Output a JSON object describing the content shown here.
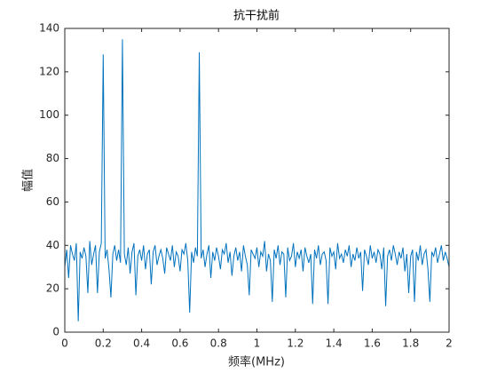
{
  "chart_data": {
    "type": "line",
    "title": "抗干扰前",
    "xlabel": "频率(MHz)",
    "ylabel": "幅值",
    "color": "#0072bd",
    "x": [
      0,
      0.01,
      0.02,
      0.03,
      0.04,
      0.05,
      0.06,
      0.07,
      0.08,
      0.09,
      0.1,
      0.11,
      0.12,
      0.13,
      0.14,
      0.15,
      0.16,
      0.17,
      0.18,
      0.19,
      0.2,
      0.21,
      0.22,
      0.23,
      0.24,
      0.25,
      0.26,
      0.27,
      0.28,
      0.29,
      0.3,
      0.31,
      0.32,
      0.33,
      0.34,
      0.35,
      0.36,
      0.37,
      0.38,
      0.39,
      0.4,
      0.41,
      0.42,
      0.43,
      0.44,
      0.45,
      0.46,
      0.47,
      0.48,
      0.49,
      0.5,
      0.51,
      0.52,
      0.53,
      0.54,
      0.55,
      0.56,
      0.57,
      0.58,
      0.59,
      0.6,
      0.61,
      0.62,
      0.63,
      0.64,
      0.65,
      0.66,
      0.67,
      0.68,
      0.69,
      0.7,
      0.71,
      0.72,
      0.73,
      0.74,
      0.75,
      0.76,
      0.77,
      0.78,
      0.79,
      0.8,
      0.81,
      0.82,
      0.83,
      0.84,
      0.85,
      0.86,
      0.87,
      0.88,
      0.89,
      0.9,
      0.91,
      0.92,
      0.93,
      0.94,
      0.95,
      0.96,
      0.97,
      0.98,
      0.99,
      1,
      1.01,
      1.02,
      1.03,
      1.04,
      1.05,
      1.06,
      1.07,
      1.08,
      1.09,
      1.1,
      1.11,
      1.12,
      1.13,
      1.14,
      1.15,
      1.16,
      1.17,
      1.18,
      1.19,
      1.2,
      1.21,
      1.22,
      1.23,
      1.24,
      1.25,
      1.26,
      1.27,
      1.28,
      1.29,
      1.3,
      1.31,
      1.32,
      1.33,
      1.34,
      1.35,
      1.36,
      1.37,
      1.38,
      1.39,
      1.4,
      1.41,
      1.42,
      1.43,
      1.44,
      1.45,
      1.46,
      1.47,
      1.48,
      1.49,
      1.5,
      1.51,
      1.52,
      1.53,
      1.54,
      1.55,
      1.56,
      1.57,
      1.58,
      1.59,
      1.6,
      1.61,
      1.62,
      1.63,
      1.64,
      1.65,
      1.66,
      1.67,
      1.68,
      1.69,
      1.7,
      1.71,
      1.72,
      1.73,
      1.74,
      1.75,
      1.76,
      1.77,
      1.78,
      1.79,
      1.8,
      1.81,
      1.82,
      1.83,
      1.84,
      1.85,
      1.86,
      1.87,
      1.88,
      1.89,
      1.9,
      1.91,
      1.92,
      1.93,
      1.94,
      1.95,
      1.96,
      1.97,
      1.98,
      1.99,
      2
    ],
    "values": [
      30,
      38,
      25,
      40,
      36,
      33,
      41,
      5,
      37,
      34,
      39,
      35,
      18,
      42,
      31,
      36,
      40,
      18,
      37,
      41,
      128,
      34,
      38,
      29,
      16,
      36,
      40,
      33,
      38,
      32,
      135,
      36,
      31,
      39,
      27,
      37,
      41,
      17,
      35,
      38,
      33,
      40,
      29,
      36,
      38,
      22,
      37,
      40,
      31,
      35,
      38,
      34,
      27,
      39,
      36,
      33,
      40,
      30,
      37,
      35,
      28,
      38,
      36,
      41,
      33,
      9,
      37,
      32,
      39,
      35,
      129,
      34,
      38,
      30,
      36,
      40,
      25,
      37,
      33,
      39,
      35,
      29,
      38,
      36,
      41,
      32,
      37,
      26,
      35,
      39,
      33,
      37,
      28,
      40,
      35,
      31,
      17,
      38,
      36,
      34,
      39,
      30,
      37,
      35,
      42,
      28,
      36,
      33,
      14,
      38,
      34,
      40,
      31,
      37,
      36,
      16,
      39,
      33,
      35,
      41,
      30,
      37,
      34,
      38,
      28,
      39,
      35,
      32,
      36,
      13,
      38,
      34,
      40,
      31,
      36,
      37,
      33,
      13,
      39,
      35,
      37,
      29,
      41,
      34,
      36,
      32,
      38,
      35,
      40,
      30,
      36,
      33,
      39,
      34,
      37,
      19,
      38,
      35,
      31,
      40,
      34,
      37,
      32,
      38,
      36,
      29,
      39,
      12,
      35,
      38,
      33,
      40,
      36,
      31,
      37,
      34,
      39,
      28,
      36,
      18,
      35,
      38,
      14,
      37,
      33,
      40,
      31,
      36,
      38,
      29,
      14,
      37,
      35,
      39,
      32,
      36,
      40,
      33,
      37,
      34,
      30
    ],
    "xlim": [
      0,
      2
    ],
    "xticks": [
      0,
      0.2,
      0.4,
      0.6,
      0.8,
      1,
      1.2,
      1.4,
      1.6,
      1.8,
      2
    ],
    "ylim": [
      0,
      140
    ],
    "yticks": [
      0,
      20,
      40,
      60,
      80,
      100,
      120,
      140
    ]
  }
}
